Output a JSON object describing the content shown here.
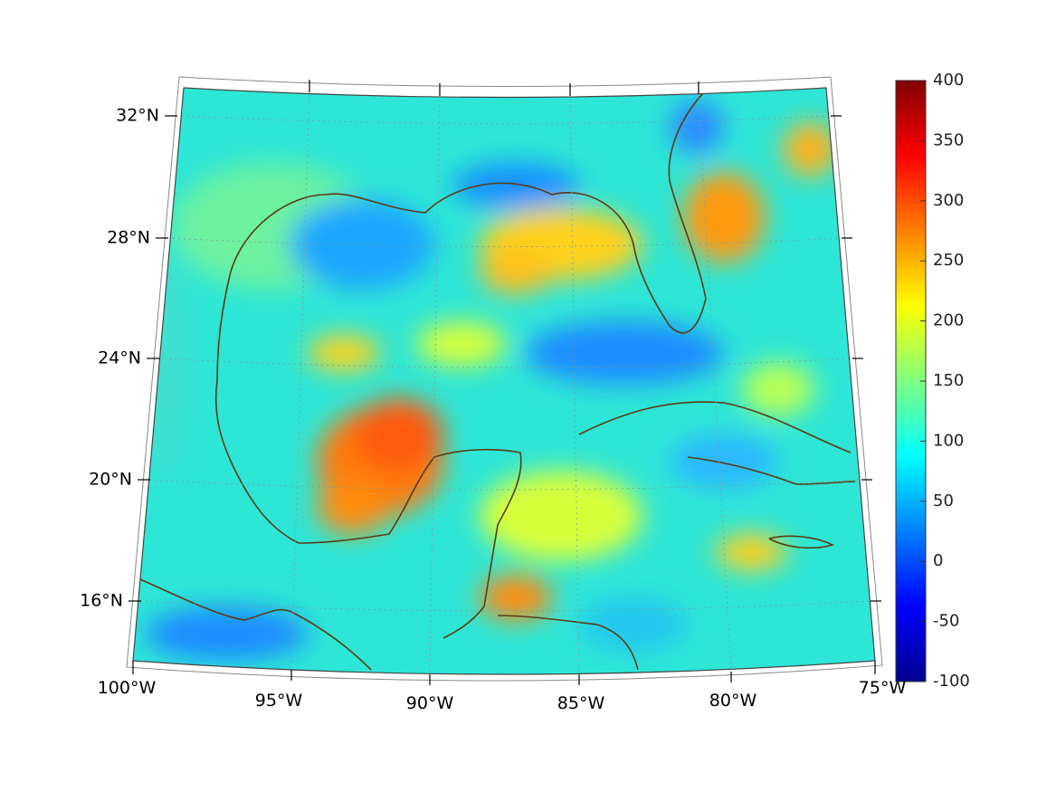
{
  "map": {
    "projection": "conic",
    "lon_range": [
      "100°W",
      "75°W"
    ],
    "lat_range": [
      "14°N",
      "33°N"
    ],
    "grid": true,
    "coastline_color": "#5a3b14",
    "lat_labels": [
      "32°N",
      "28°N",
      "24°N",
      "20°N",
      "16°N"
    ],
    "lon_labels": [
      "100°W",
      "95°W",
      "90°W",
      "85°W",
      "80°W",
      "75°W"
    ],
    "field_description_hidden": false
  },
  "colorbar": {
    "colormap": "jet",
    "min": -100,
    "max": 400,
    "tick_labels": [
      "400",
      "350",
      "300",
      "250",
      "200",
      "150",
      "100",
      "50",
      "0",
      "-50",
      "-100"
    ],
    "tick_values": [
      400,
      350,
      300,
      250,
      200,
      150,
      100,
      50,
      0,
      -50,
      -100
    ]
  }
}
